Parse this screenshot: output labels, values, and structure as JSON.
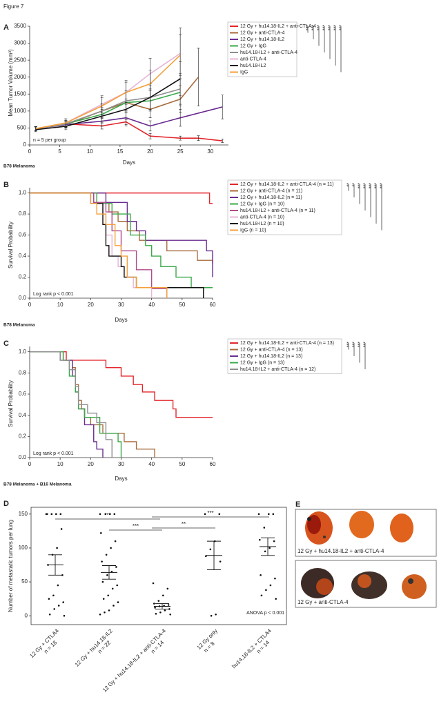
{
  "figure_title": "Figure 7",
  "panel_e": {
    "panel": "E",
    "captions": [
      "12 Gy + hu14.18-IL2 + anti-CTLA-4",
      "12 Gy + anti-CTLA-4"
    ]
  },
  "chart_data": [
    {
      "type": "line",
      "panel": "A",
      "subtitle": "B78 Melanoma",
      "x_label": "Days",
      "y_label": "Mean Tumor Volume (mm³)",
      "note": "n = 5 per group",
      "xlim": [
        0,
        33
      ],
      "xticks": [
        0,
        5,
        10,
        15,
        20,
        25,
        30
      ],
      "ylim": [
        0,
        3500
      ],
      "yticks": [
        0,
        500,
        1000,
        1500,
        2000,
        2500,
        3000,
        3500
      ],
      "significance": [
        "***",
        "***",
        "***",
        "***",
        "***",
        "***",
        "***"
      ],
      "series": [
        {
          "name": "12 Gy + hu14.18-IL2 + anti-CTLA-4",
          "color": "#e3262b",
          "x": [
            1,
            6,
            12,
            16,
            20,
            25,
            28,
            32
          ],
          "values": [
            480,
            620,
            560,
            680,
            260,
            200,
            200,
            120
          ],
          "errors": [
            60,
            80,
            90,
            120,
            80,
            60,
            70,
            50
          ]
        },
        {
          "name": "12 Gy + anti-CTLA-4",
          "color": "#a86b3c",
          "x": [
            1,
            6,
            12,
            16,
            20,
            25,
            28
          ],
          "values": [
            480,
            600,
            1000,
            1250,
            1050,
            1350,
            2000
          ],
          "errors": [
            60,
            100,
            200,
            300,
            250,
            400,
            850
          ]
        },
        {
          "name": "12 Gy + hu14.18-IL2",
          "color": "#6a2d91",
          "x": [
            1,
            6,
            12,
            16,
            20,
            25,
            32
          ],
          "values": [
            480,
            600,
            700,
            800,
            560,
            800,
            1120
          ],
          "errors": [
            60,
            100,
            150,
            200,
            150,
            250,
            350
          ]
        },
        {
          "name": "12 Gy + IgG",
          "color": "#3aa94a",
          "x": [
            1,
            6,
            12,
            16,
            20,
            25
          ],
          "values": [
            480,
            620,
            900,
            1250,
            1300,
            1550
          ],
          "errors": [
            60,
            100,
            200,
            300,
            300,
            400
          ]
        },
        {
          "name": "hu14.18-IL2 + anti-CTLA-4",
          "color": "#8e8e8e",
          "x": [
            1,
            6,
            12,
            16,
            20,
            25
          ],
          "values": [
            480,
            620,
            1000,
            1300,
            1400,
            1650
          ],
          "errors": [
            60,
            100,
            220,
            300,
            350,
            450
          ]
        },
        {
          "name": "anti-CTLA-4",
          "color": "#e7b5d6",
          "x": [
            1,
            6,
            12,
            16,
            20,
            25
          ],
          "values": [
            480,
            650,
            1200,
            1550,
            2100,
            2700
          ],
          "errors": [
            60,
            120,
            250,
            350,
            450,
            750
          ]
        },
        {
          "name": "hu14.18-IL2",
          "color": "#111111",
          "x": [
            1,
            6,
            12,
            16,
            20,
            25
          ],
          "values": [
            450,
            550,
            850,
            1050,
            1400,
            1950
          ],
          "errors": [
            60,
            100,
            200,
            300,
            400,
            500
          ]
        },
        {
          "name": "IgG",
          "color": "#f5a03a",
          "x": [
            1,
            6,
            12,
            16,
            20,
            25
          ],
          "values": [
            480,
            650,
            1150,
            1550,
            1800,
            2650
          ],
          "errors": [
            60,
            120,
            250,
            300,
            400,
            600
          ]
        }
      ]
    },
    {
      "type": "step",
      "panel": "B",
      "subtitle": "B78 Melanoma",
      "x_label": "Days",
      "y_label": "Survival Probability",
      "note": "Log rank p < 0.001",
      "xlim": [
        0,
        60
      ],
      "xticks": [
        0,
        10,
        20,
        30,
        40,
        50,
        60
      ],
      "ylim": [
        0,
        1.05
      ],
      "yticks": [
        {
          "value": 0,
          "label": "0.0"
        },
        0.2,
        0.4,
        0.6,
        0.8,
        {
          "value": 1,
          "label": "1.0"
        }
      ],
      "significance": [
        "**",
        "**",
        "***",
        "***",
        "***",
        "***",
        "***"
      ],
      "series": [
        {
          "name": "12 Gy + hu14.18-IL2 + anti-CTLA-4 (n = 11)",
          "color": "#e3262b",
          "x": [
            0,
            59,
            60
          ],
          "values": [
            1,
            0.9,
            0.9
          ]
        },
        {
          "name": "12 Gy + anti-CTLA-4 (n = 11)",
          "color": "#a86b3c",
          "x": [
            0,
            21,
            26,
            29,
            32,
            36,
            45,
            55,
            60
          ],
          "values": [
            1,
            0.91,
            0.82,
            0.73,
            0.64,
            0.55,
            0.45,
            0.36,
            0.33
          ]
        },
        {
          "name": "12 Gy + hu14.18-IL2 (n = 11)",
          "color": "#6a2d91",
          "x": [
            0,
            25,
            32,
            35,
            38,
            58,
            60
          ],
          "values": [
            1,
            0.91,
            0.73,
            0.64,
            0.55,
            0.45,
            0.2
          ]
        },
        {
          "name": "12 Gy + IgG (n = 10)",
          "color": "#3aa94a",
          "x": [
            0,
            22,
            27,
            33,
            38,
            40,
            43,
            48,
            53,
            60
          ],
          "values": [
            1,
            0.9,
            0.8,
            0.6,
            0.5,
            0.4,
            0.3,
            0.2,
            0.1,
            0.1
          ]
        },
        {
          "name": "hu14.18-IL2 + anti-CTLA-4 (n = 11)",
          "color": "#b04b8c",
          "x": [
            0,
            21,
            25,
            27,
            30,
            35,
            40,
            45
          ],
          "values": [
            1,
            0.91,
            0.82,
            0.64,
            0.45,
            0.27,
            0.09,
            0
          ]
        },
        {
          "name": "anti-CTLA-4 (n = 10)",
          "color": "#e7b5d6",
          "x": [
            0,
            20,
            24,
            25,
            27,
            29,
            31,
            34,
            40
          ],
          "values": [
            1,
            0.9,
            0.8,
            0.6,
            0.4,
            0.3,
            0.2,
            0.1,
            0
          ]
        },
        {
          "name": "hu14.18-IL2 (n = 10)",
          "color": "#111111",
          "x": [
            0,
            20,
            24,
            25,
            26,
            30,
            31,
            35,
            57
          ],
          "values": [
            1,
            0.9,
            0.7,
            0.5,
            0.4,
            0.3,
            0.2,
            0.1,
            0
          ]
        },
        {
          "name": "IgG (n = 10)",
          "color": "#f5a03a",
          "x": [
            0,
            20,
            22,
            25,
            28,
            30,
            32,
            35,
            45
          ],
          "values": [
            1,
            0.9,
            0.8,
            0.7,
            0.5,
            0.4,
            0.2,
            0.1,
            0
          ]
        }
      ]
    },
    {
      "type": "step",
      "panel": "C",
      "subtitle": "B78 Melanoma + B16 Melanoma",
      "x_label": "Days",
      "y_label": "Survival Probability",
      "note": "Log rank p < 0.001",
      "xlim": [
        0,
        60
      ],
      "xticks": [
        0,
        10,
        20,
        30,
        40,
        50,
        60
      ],
      "ylim": [
        0,
        1.05
      ],
      "yticks": [
        {
          "value": 0,
          "label": "0.0"
        },
        0.2,
        0.4,
        0.6,
        0.8,
        {
          "value": 1,
          "label": "1.0"
        }
      ],
      "significance": [
        "***",
        "***",
        "***",
        "***"
      ],
      "series": [
        {
          "name": "12 Gy + hu14.18-IL2 + anti-CTLA-4 (n = 13)",
          "color": "#e3262b",
          "x": [
            0,
            12,
            25,
            30,
            34,
            37,
            41,
            47,
            48,
            60
          ],
          "values": [
            1,
            0.92,
            0.85,
            0.77,
            0.69,
            0.62,
            0.54,
            0.46,
            0.38,
            0.38
          ]
        },
        {
          "name": "12 Gy + anti-CTLA-4 (n = 13)",
          "color": "#a86b3c",
          "x": [
            0,
            11,
            14,
            15,
            16,
            17,
            18,
            20,
            24,
            31,
            35,
            41
          ],
          "values": [
            1,
            0.92,
            0.85,
            0.69,
            0.54,
            0.46,
            0.38,
            0.31,
            0.23,
            0.15,
            0.08,
            0
          ]
        },
        {
          "name": "12 Gy + hu14.18-IL2 (n = 13)",
          "color": "#6a2d91",
          "x": [
            0,
            10,
            14,
            15,
            16,
            18,
            21,
            22,
            24
          ],
          "values": [
            1,
            0.92,
            0.77,
            0.62,
            0.46,
            0.31,
            0.15,
            0.08,
            0
          ]
        },
        {
          "name": "12 Gy + IgG (n = 13)",
          "color": "#3aa94a",
          "x": [
            0,
            11,
            13,
            15,
            16,
            18,
            23,
            29,
            30
          ],
          "values": [
            1,
            0.92,
            0.77,
            0.62,
            0.46,
            0.38,
            0.23,
            0.15,
            0
          ]
        },
        {
          "name": "hu14.18-IL2 + anti-CTLA-4 (n = 12)",
          "color": "#8e8e8e",
          "x": [
            0,
            10,
            13,
            15,
            16,
            19,
            22,
            25,
            27
          ],
          "values": [
            1,
            0.92,
            0.83,
            0.67,
            0.5,
            0.42,
            0.33,
            0.17,
            0
          ]
        }
      ]
    },
    {
      "type": "dotplot",
      "panel": "D",
      "y_label": "Number of metastatic tumors per lung",
      "note": "ANOVA p < 0.001",
      "ylim": [
        -13,
        160
      ],
      "yticks": [
        0,
        50,
        100,
        150
      ],
      "significance": [
        "***",
        "***",
        "***",
        "**"
      ],
      "categories": [
        "12 Gy + CTLA4",
        "12 Gy + hu14.18-IL2",
        "12 Gy + hu14.18-IL2 + anti-CTLA-4",
        "12 Gy only",
        "hu14.18-IL2 + CTLA4"
      ],
      "n_labels": [
        "n = 18",
        "n = 22",
        "n = 14",
        "n = 8",
        "n = 14"
      ],
      "points": [
        [
          150,
          150,
          150,
          150,
          150,
          128,
          100,
          90,
          75,
          60,
          45,
          30,
          25,
          20,
          15,
          10,
          2,
          0
        ],
        [
          150,
          150,
          150,
          150,
          122,
          110,
          100,
          90,
          80,
          72,
          65,
          60,
          50,
          45,
          40,
          30,
          25,
          20,
          15,
          8,
          5,
          2
        ],
        [
          48,
          40,
          30,
          22,
          18,
          16,
          15,
          14,
          12,
          10,
          8,
          5,
          3,
          2
        ],
        [
          150,
          150,
          110,
          98,
          88,
          80,
          2,
          0
        ],
        [
          150,
          150,
          150,
          130,
          112,
          110,
          100,
          95,
          60,
          55,
          45,
          38,
          30,
          25
        ]
      ],
      "means": [
        75,
        64,
        14,
        89,
        102
      ],
      "sems": [
        15,
        10,
        4,
        21,
        13
      ]
    }
  ]
}
